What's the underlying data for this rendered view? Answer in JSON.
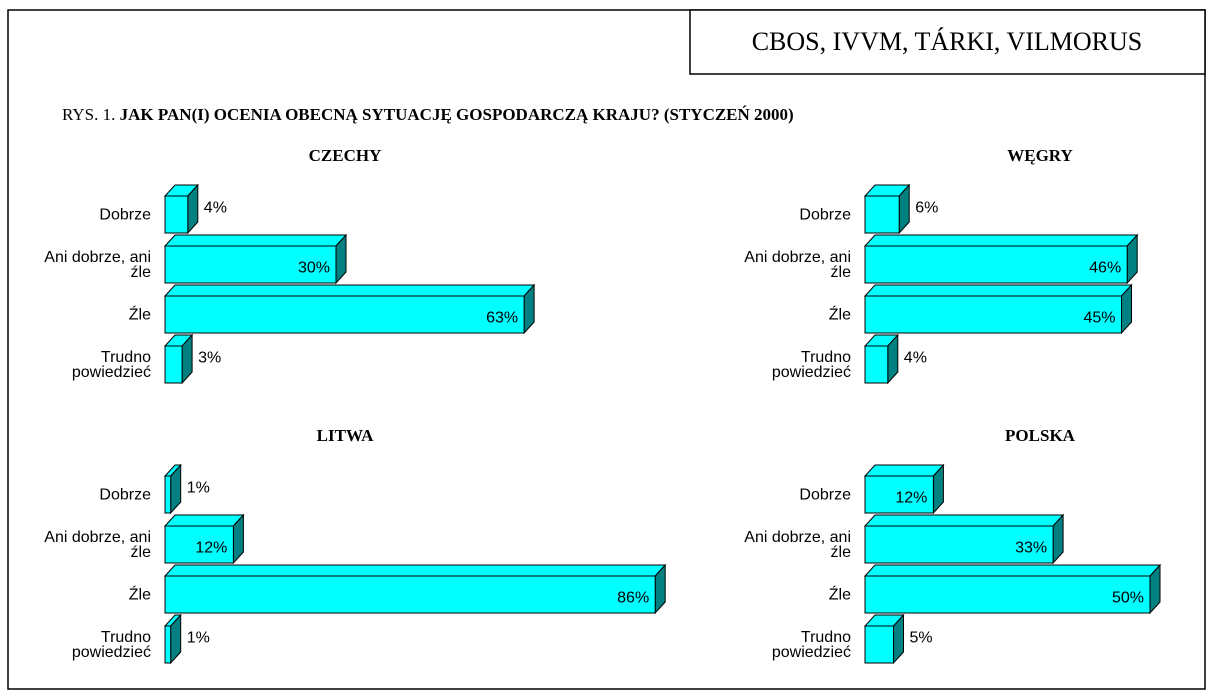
{
  "source": "CBOS, IVVM, TÁRKI, VILMORUS",
  "figure_label": "RYS. 1.",
  "title": "JAK PAN(I) OCENIA OBECNĄ SYTUACJĘ GOSPODARCZĄ KRAJU?  (STYCZEŃ 2000)",
  "chart_data": [
    {
      "type": "bar",
      "title": "CZECHY",
      "categories": [
        "Dobrze",
        "Ani dobrze, ani źle",
        "Źle",
        "Trudno powiedzieć"
      ],
      "values": [
        4,
        30,
        63,
        3
      ],
      "value_labels": [
        "4%",
        "30%",
        "63%",
        "3%"
      ],
      "color": "#00ffff"
    },
    {
      "type": "bar",
      "title": "WĘGRY",
      "categories": [
        "Dobrze",
        "Ani dobrze, ani źle",
        "Źle",
        "Trudno powiedzieć"
      ],
      "values": [
        6,
        46,
        45,
        4
      ],
      "value_labels": [
        "6%",
        "46%",
        "45%",
        "4%"
      ],
      "color": "#00ffff"
    },
    {
      "type": "bar",
      "title": "LITWA",
      "categories": [
        "Dobrze",
        "Ani dobrze, ani źle",
        "Źle",
        "Trudno powiedzieć"
      ],
      "values": [
        1,
        12,
        86,
        1
      ],
      "value_labels": [
        "1%",
        "12%",
        "86%",
        "1%"
      ],
      "color": "#00ffff"
    },
    {
      "type": "bar",
      "title": "POLSKA",
      "categories": [
        "Dobrze",
        "Ani dobrze, ani źle",
        "Źle",
        "Trudno powiedzieć"
      ],
      "values": [
        12,
        33,
        50,
        5
      ],
      "value_labels": [
        "12%",
        "33%",
        "50%",
        "5%"
      ],
      "color": "#00ffff"
    }
  ]
}
